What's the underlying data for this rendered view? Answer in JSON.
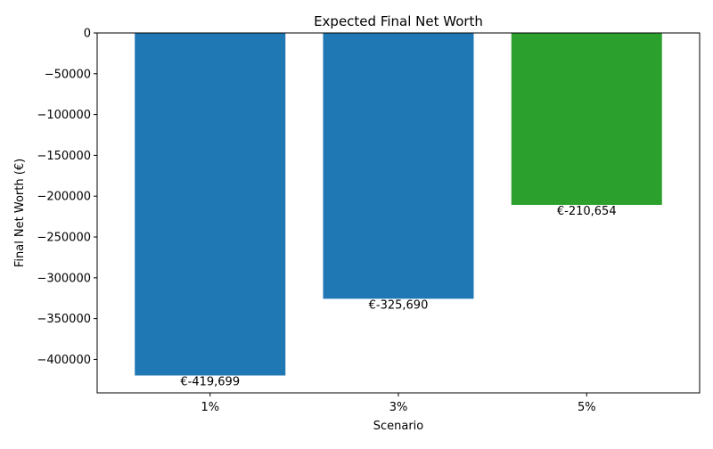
{
  "chart_data": {
    "type": "bar",
    "title": "Expected Final Net Worth",
    "xlabel": "Scenario",
    "ylabel": "Final Net Worth (€)",
    "categories": [
      "1%",
      "3%",
      "5%"
    ],
    "values": [
      -419699,
      -325690,
      -210654
    ],
    "data_labels": [
      "€-419,699",
      "€-325,690",
      "€-210,654"
    ],
    "colors": [
      "#1f77b4",
      "#1f77b4",
      "#2ca02c"
    ],
    "ylim": [
      -441000,
      0
    ],
    "yticks": [
      0,
      -50000,
      -100000,
      -150000,
      -200000,
      -250000,
      -300000,
      -350000,
      -400000
    ],
    "ytick_labels": [
      "0",
      "−50000",
      "−100000",
      "−150000",
      "−200000",
      "−250000",
      "−300000",
      "−350000",
      "−400000"
    ],
    "grid": false,
    "legend": "none"
  }
}
